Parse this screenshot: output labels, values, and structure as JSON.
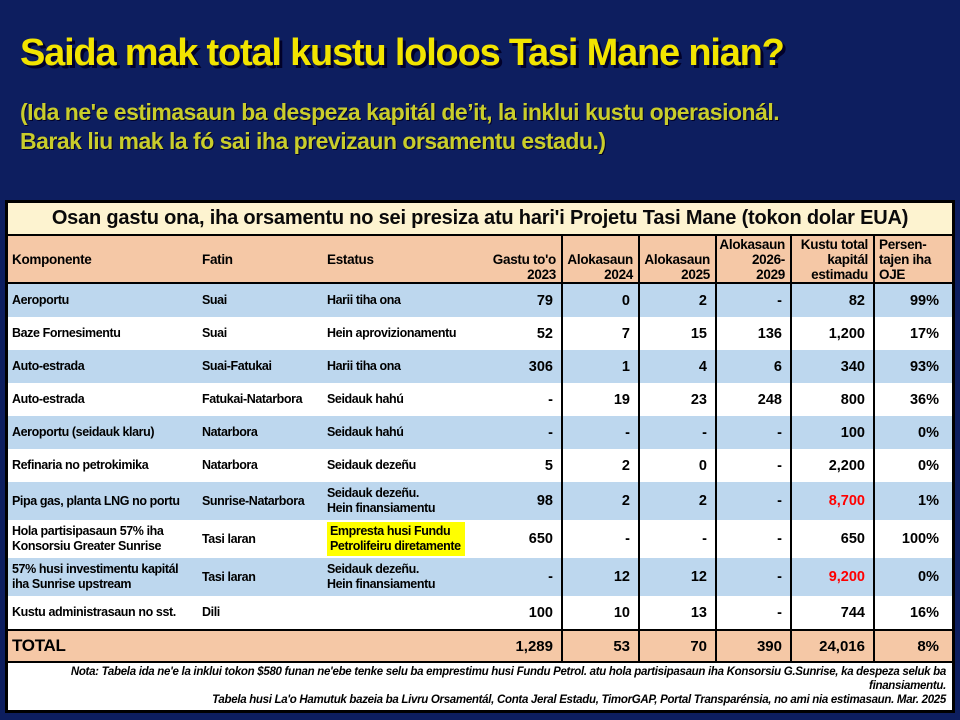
{
  "slide": {
    "title": "Saida mak total kustu loloos Tasi Mane nian?",
    "subtitle": "(Ida ne'e estimasaun ba despeza kapitál de’it, la inklui kustu operasionál.\nBarak liu mak la fó sai iha previzaun orsamentu estadu.)"
  },
  "colors": {
    "background": "#0d1e5f",
    "title_text": "#f2e400",
    "subtitle_text": "#c9cd2b",
    "caption_bg": "#fdf3d0",
    "header_bg": "#f5c8a6",
    "row_alt_bg": "#bdd7ee",
    "highlight_bg": "#ffff00",
    "negative_value_text": "#ff0000"
  },
  "table": {
    "caption": "Osan gastu ona, iha orsamentu no sei presiza atu hari'i Projetu Tasi Mane (tokon dolar EUA)",
    "columns": [
      "Komponente",
      "Fatin",
      "Estatus",
      "Gastu to'o\n2023",
      "Alokasaun\n2024",
      "Alokasaun\n2025",
      "Alokasaun\n2026-\n2029",
      "Kustu total\nkapitál\nestimadu",
      "Persen-\ntajen iha\nOJE"
    ],
    "rows": [
      {
        "komponente": "Aeroportu",
        "fatin": "Suai",
        "estatus": "Harii tiha ona",
        "gastu_2023": "79",
        "alok_2024": "0",
        "alok_2025": "2",
        "alok_2026_2029": "-",
        "kustu_total": "82",
        "persen_oje": "99%"
      },
      {
        "komponente": "Baze Fornesimentu",
        "fatin": "Suai",
        "estatus": "Hein aprovizionamentu",
        "gastu_2023": "52",
        "alok_2024": "7",
        "alok_2025": "15",
        "alok_2026_2029": "136",
        "kustu_total": "1,200",
        "persen_oje": "17%"
      },
      {
        "komponente": "Auto-estrada",
        "fatin": "Suai-Fatukai",
        "estatus": "Harii tiha ona",
        "gastu_2023": "306",
        "alok_2024": "1",
        "alok_2025": "4",
        "alok_2026_2029": "6",
        "kustu_total": "340",
        "persen_oje": "93%"
      },
      {
        "komponente": "Auto-estrada",
        "fatin": "Fatukai-Natarbora",
        "estatus": "Seidauk hahú",
        "gastu_2023": "-",
        "alok_2024": "19",
        "alok_2025": "23",
        "alok_2026_2029": "248",
        "kustu_total": "800",
        "persen_oje": "36%"
      },
      {
        "komponente": "Aeroportu (seidauk klaru)",
        "fatin": "Natarbora",
        "estatus": "Seidauk hahú",
        "gastu_2023": "-",
        "alok_2024": "-",
        "alok_2025": "-",
        "alok_2026_2029": "-",
        "kustu_total": "100",
        "persen_oje": "0%"
      },
      {
        "komponente": "Refinaria no petrokimika",
        "fatin": "Natarbora",
        "estatus": "Seidauk dezeñu",
        "gastu_2023": "5",
        "alok_2024": "2",
        "alok_2025": "0",
        "alok_2026_2029": "-",
        "kustu_total": "2,200",
        "persen_oje": "0%"
      },
      {
        "komponente": "Pipa gas, planta LNG no portu",
        "fatin": "Sunrise-Natarbora",
        "estatus": "Seidauk dezeñu.\nHein finansiamentu",
        "gastu_2023": "98",
        "alok_2024": "2",
        "alok_2025": "2",
        "alok_2026_2029": "-",
        "kustu_total": "8,700",
        "persen_oje": "1%",
        "kustu_red": true
      },
      {
        "komponente": "Hola partisipasaun 57% iha\nKonsorsiu Greater Sunrise",
        "fatin": "Tasi laran",
        "estatus": "Empresta husi Fundu\nPetrolifeiru diretamente",
        "gastu_2023": "650",
        "alok_2024": "-",
        "alok_2025": "-",
        "alok_2026_2029": "-",
        "kustu_total": "650",
        "persen_oje": "100%",
        "estatus_highlight": true
      },
      {
        "komponente": "57% husi investimentu kapitál\niha Sunrise upstream",
        "fatin": "Tasi laran",
        "estatus": "Seidauk dezeñu.\nHein finansiamentu",
        "gastu_2023": "-",
        "alok_2024": "12",
        "alok_2025": "12",
        "alok_2026_2029": "-",
        "kustu_total": "9,200",
        "persen_oje": "0%",
        "kustu_red": true
      },
      {
        "komponente": "Kustu administrasaun no sst.",
        "fatin": "Dili",
        "estatus": "",
        "gastu_2023": "100",
        "alok_2024": "10",
        "alok_2025": "13",
        "alok_2026_2029": "-",
        "kustu_total": "744",
        "persen_oje": "16%"
      }
    ],
    "total_row": {
      "label": "TOTAL",
      "gastu_2023": "1,289",
      "alok_2024": "53",
      "alok_2025": "70",
      "alok_2026_2029": "390",
      "kustu_total": "24,016",
      "persen_oje": "8%"
    },
    "notes": [
      "Nota: Tabela ida ne'e la inklui tokon $580 funan ne'ebe tenke selu ba emprestimu husi Fundu Petrol. atu hola partisipasaun iha Konsorsiu G.Sunrise, ka despeza seluk ba finansiamentu.",
      "Tabela husi La'o Hamutuk bazeia ba Livru Orsamentál, Conta Jeral Estadu, TimorGAP, Portal Transparénsia, no ami nia estimasaun. Mar. 2025"
    ]
  }
}
